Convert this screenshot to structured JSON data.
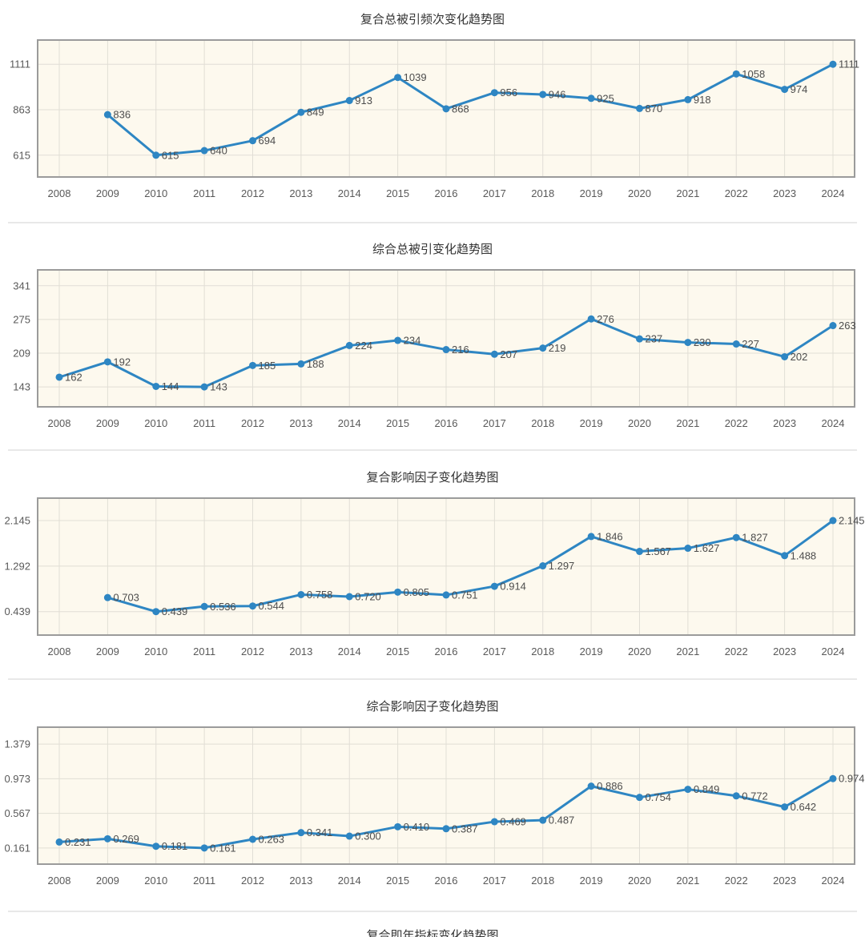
{
  "page": {
    "partial_next_chart_title": "复合即年指标变化趋势图"
  },
  "colors": {
    "line": "#2e86c3",
    "marker": "#2e86c3",
    "plot_background": "#fdf9ee",
    "plot_border": "#9b9b9b",
    "grid": "#e1ded5",
    "point_label": "#4d4d4d",
    "axis_text": "#595959",
    "title_text": "#333333",
    "divider": "#e8e8e8"
  },
  "chart_data": [
    {
      "type": "line",
      "title": "复合总被引频次变化趋势图",
      "xlabel": "",
      "ylabel": "",
      "legend": "none",
      "grid": "on",
      "categories": [
        "2008",
        "2009",
        "2010",
        "2011",
        "2012",
        "2013",
        "2014",
        "2015",
        "2016",
        "2017",
        "2018",
        "2019",
        "2020",
        "2021",
        "2022",
        "2023",
        "2024"
      ],
      "values": [
        null,
        "836",
        "615",
        "640",
        "694",
        "849",
        "913",
        "1039",
        "868",
        "956",
        "946",
        "925",
        "870",
        "918",
        "1058",
        "974",
        "1111"
      ],
      "y_ticks": [
        "615",
        "863",
        "1111"
      ],
      "y_domain": [
        496,
        1243
      ]
    },
    {
      "type": "line",
      "title": "综合总被引变化趋势图",
      "xlabel": "",
      "ylabel": "",
      "legend": "none",
      "grid": "on",
      "categories": [
        "2008",
        "2009",
        "2010",
        "2011",
        "2012",
        "2013",
        "2014",
        "2015",
        "2016",
        "2017",
        "2018",
        "2019",
        "2020",
        "2021",
        "2022",
        "2023",
        "2024"
      ],
      "values": [
        "162",
        "192",
        "144",
        "143",
        "185",
        "188",
        "224",
        "234",
        "216",
        "207",
        "219",
        "276",
        "237",
        "230",
        "227",
        "202",
        "263"
      ],
      "y_ticks": [
        "143",
        "209",
        "275",
        "341"
      ],
      "y_domain": [
        104,
        372
      ]
    },
    {
      "type": "line",
      "title": "复合影响因子变化趋势图",
      "xlabel": "",
      "ylabel": "",
      "legend": "none",
      "grid": "on",
      "categories": [
        "2008",
        "2009",
        "2010",
        "2011",
        "2012",
        "2013",
        "2014",
        "2015",
        "2016",
        "2017",
        "2018",
        "2019",
        "2020",
        "2021",
        "2022",
        "2023",
        "2024"
      ],
      "values": [
        null,
        "0.703",
        "0.439",
        "0.536",
        "0.544",
        "0.758",
        "0.720",
        "0.805",
        "0.751",
        "0.914",
        "1.297",
        "1.846",
        "1.567",
        "1.627",
        "1.827",
        "1.488",
        "2.145"
      ],
      "y_ticks": [
        "0.439",
        "1.292",
        "2.145"
      ],
      "y_domain": [
        0,
        2.565
      ]
    },
    {
      "type": "line",
      "title": "综合影响因子变化趋势图",
      "xlabel": "",
      "ylabel": "",
      "legend": "none",
      "grid": "on",
      "categories": [
        "2008",
        "2009",
        "2010",
        "2011",
        "2012",
        "2013",
        "2014",
        "2015",
        "2016",
        "2017",
        "2018",
        "2019",
        "2020",
        "2021",
        "2022",
        "2023",
        "2024"
      ],
      "values": [
        "0.231",
        "0.269",
        "0.181",
        "0.161",
        "0.263",
        "0.341",
        "0.300",
        "0.410",
        "0.387",
        "0.469",
        "0.487",
        "0.886",
        "0.754",
        "0.849",
        "0.772",
        "0.642",
        "0.974"
      ],
      "y_ticks": [
        "0.161",
        "0.567",
        "0.973",
        "1.379"
      ],
      "y_domain": [
        -0.028,
        1.577
      ]
    }
  ]
}
